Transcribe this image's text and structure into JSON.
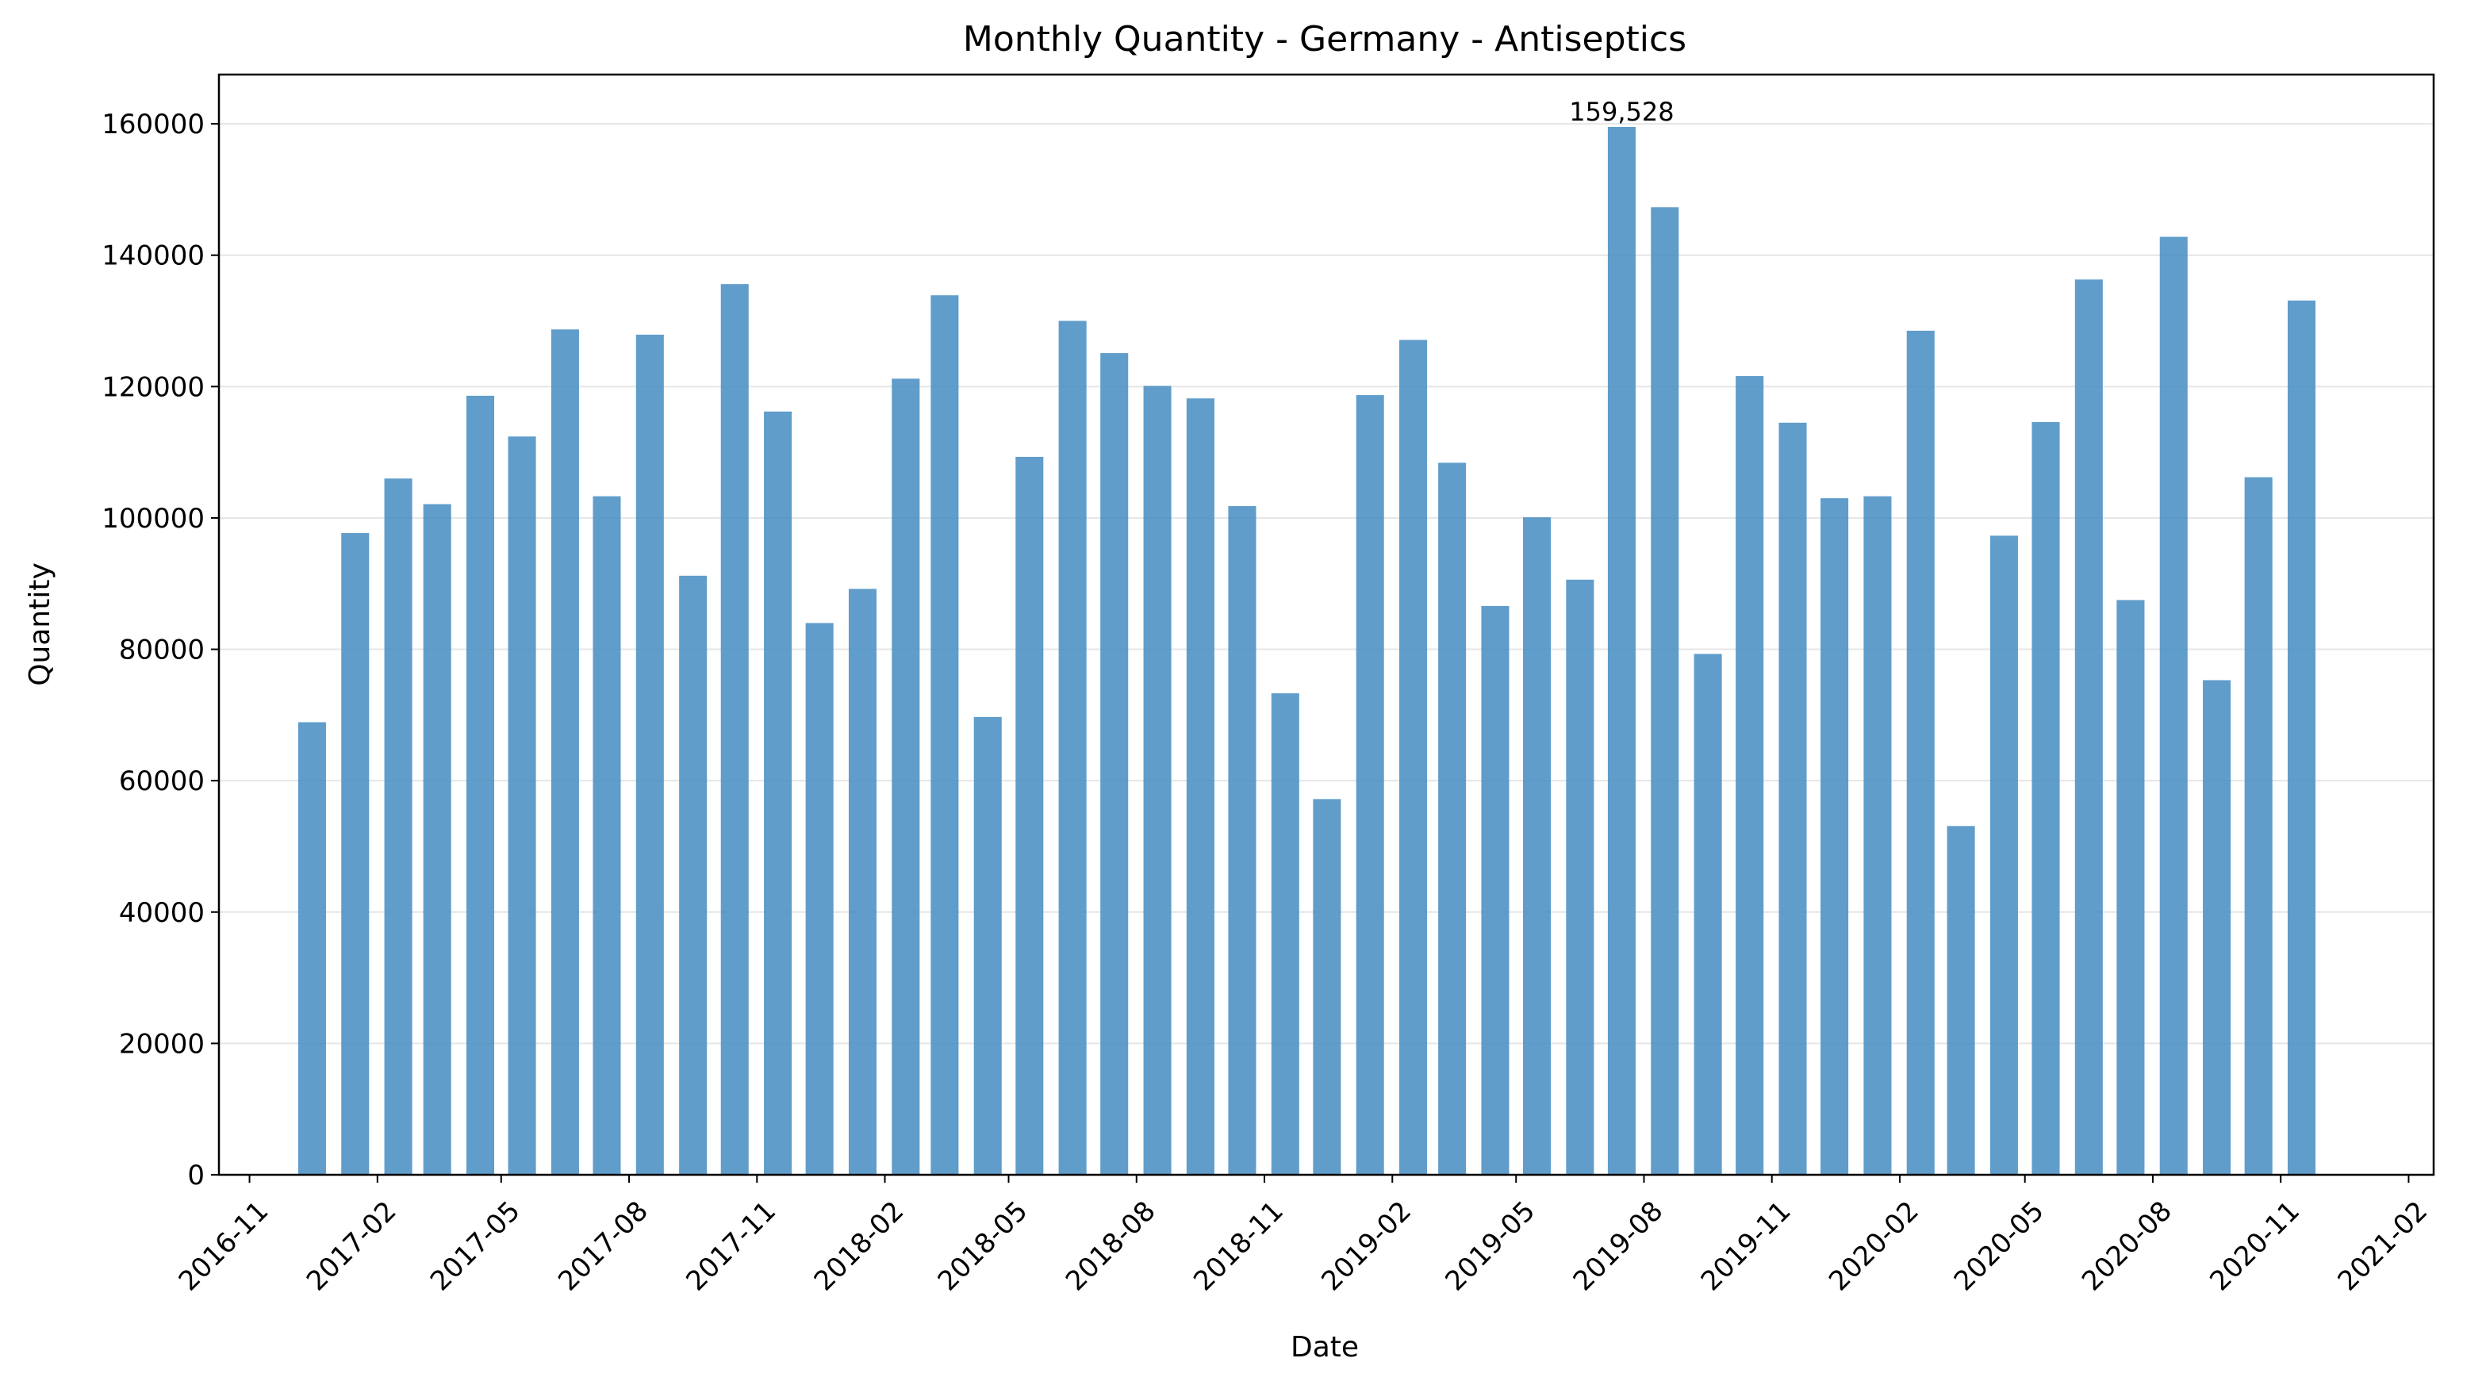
{
  "chart_data": {
    "type": "bar",
    "title": "Monthly Quantity - Germany - Antiseptics",
    "xlabel": "Date",
    "ylabel": "Quantity",
    "bar_color": "#4a90c4",
    "grid": "horizontal",
    "ylim": [
      0,
      167500
    ],
    "xlim": [
      "2016-10-10",
      "2021-02-19"
    ],
    "y_ticks": [
      0,
      20000,
      40000,
      60000,
      80000,
      100000,
      120000,
      140000,
      160000
    ],
    "x_ticks": [
      "2016-11",
      "2017-02",
      "2017-05",
      "2017-08",
      "2017-11",
      "2018-02",
      "2018-05",
      "2018-08",
      "2018-11",
      "2019-02",
      "2019-05",
      "2019-08",
      "2019-11",
      "2020-02",
      "2020-05",
      "2020-08",
      "2020-11",
      "2021-02"
    ],
    "x": [
      "2016-12",
      "2017-01",
      "2017-02",
      "2017-03",
      "2017-04",
      "2017-05",
      "2017-06",
      "2017-07",
      "2017-08",
      "2017-09",
      "2017-10",
      "2017-11",
      "2017-12",
      "2018-01",
      "2018-02",
      "2018-03",
      "2018-04",
      "2018-05",
      "2018-06",
      "2018-07",
      "2018-08",
      "2018-09",
      "2018-10",
      "2018-11",
      "2018-12",
      "2019-01",
      "2019-02",
      "2019-03",
      "2019-04",
      "2019-05",
      "2019-06",
      "2019-07",
      "2019-08",
      "2019-09",
      "2019-10",
      "2019-11",
      "2019-12",
      "2020-01",
      "2020-02",
      "2020-03",
      "2020-04",
      "2020-05",
      "2020-06",
      "2020-07",
      "2020-08",
      "2020-09",
      "2020-10",
      "2020-11"
    ],
    "values": [
      68900,
      97700,
      106000,
      102100,
      118600,
      112400,
      128700,
      103300,
      127900,
      91200,
      135600,
      116200,
      84000,
      89200,
      121200,
      133900,
      69700,
      109300,
      130000,
      125100,
      120100,
      118200,
      101800,
      73300,
      57200,
      118700,
      127100,
      108400,
      86600,
      100100,
      90600,
      159528,
      147300,
      79300,
      121600,
      114500,
      103000,
      103300,
      128500,
      53100,
      97300,
      114600,
      136300,
      87500,
      142800,
      75300,
      106200,
      133100
    ],
    "annotations": [
      {
        "x": "2019-07",
        "value": 159528,
        "text": "159,528"
      }
    ]
  }
}
